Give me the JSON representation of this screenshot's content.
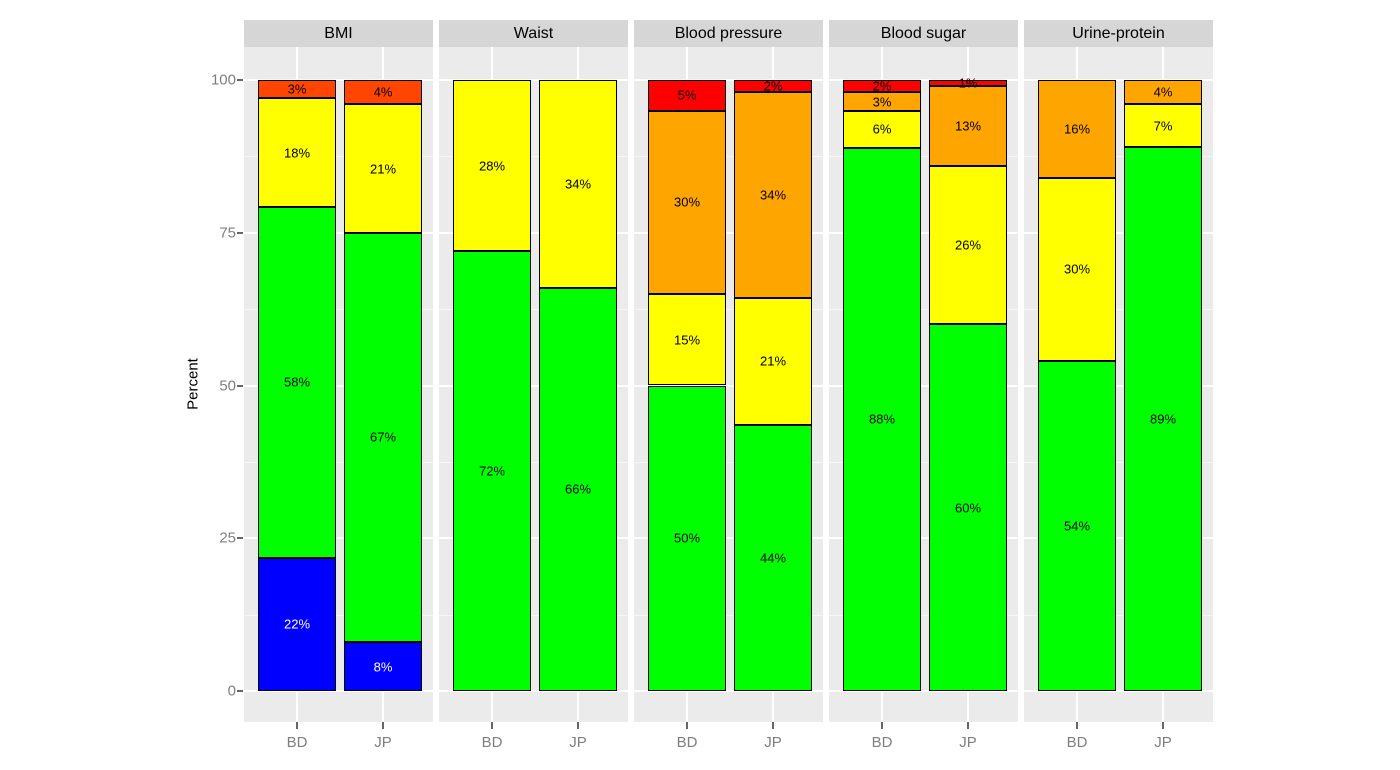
{
  "chart_data": {
    "type": "bar",
    "stacked": true,
    "units": "percent",
    "title": "",
    "xlabel": "",
    "ylabel": "Percent",
    "ylim": [
      0,
      100
    ],
    "y_major_ticks": [
      0,
      25,
      50,
      75,
      100
    ],
    "y_minor_ticks": [
      12.5,
      37.5,
      62.5,
      87.5
    ],
    "categories": [
      "BD",
      "JP"
    ],
    "grid": "on",
    "legend": "none",
    "palette": {
      "blue": "#0000FF",
      "green": "#00FF00",
      "yellow": "#FFFF00",
      "orange": "#FFA500",
      "orangered": "#FF4500",
      "red": "#FF0000"
    },
    "colors": {
      "panel_bg": "#EBEBEB",
      "strip_bg": "#D6D6D6",
      "strip_text": "#000000",
      "grid_major": "#FFFFFF",
      "axis_text": "#7F7F7F",
      "tick_mark": "#666666",
      "segment_border": "#000000",
      "label_text": "#000000"
    },
    "facets": [
      {
        "label": "BMI",
        "bars": [
          {
            "category": "BD",
            "segments": [
              {
                "color": "blue",
                "value": 22,
                "label": "22%",
                "label_color": "#FFFFFF"
              },
              {
                "color": "green",
                "value": 58,
                "label": "58%"
              },
              {
                "color": "yellow",
                "value": 18,
                "label": "18%"
              },
              {
                "color": "orangered",
                "value": 3,
                "label": "3%"
              }
            ]
          },
          {
            "category": "JP",
            "segments": [
              {
                "color": "blue",
                "value": 8,
                "label": "8%",
                "label_color": "#FFFFFF"
              },
              {
                "color": "green",
                "value": 67,
                "label": "67%"
              },
              {
                "color": "yellow",
                "value": 21,
                "label": "21%"
              },
              {
                "color": "orangered",
                "value": 4,
                "label": "4%"
              }
            ]
          }
        ]
      },
      {
        "label": "Waist",
        "bars": [
          {
            "category": "BD",
            "segments": [
              {
                "color": "green",
                "value": 72,
                "label": "72%"
              },
              {
                "color": "yellow",
                "value": 28,
                "label": "28%"
              }
            ]
          },
          {
            "category": "JP",
            "segments": [
              {
                "color": "green",
                "value": 66,
                "label": "66%"
              },
              {
                "color": "yellow",
                "value": 34,
                "label": "34%"
              }
            ]
          }
        ]
      },
      {
        "label": "Blood pressure",
        "bars": [
          {
            "category": "BD",
            "segments": [
              {
                "color": "green",
                "value": 50,
                "label": "50%"
              },
              {
                "color": "yellow",
                "value": 15,
                "label": "15%"
              },
              {
                "color": "orange",
                "value": 30,
                "label": "30%"
              },
              {
                "color": "red",
                "value": 5,
                "label": "5%"
              }
            ]
          },
          {
            "category": "JP",
            "segments": [
              {
                "color": "green",
                "value": 44,
                "label": "44%"
              },
              {
                "color": "yellow",
                "value": 21,
                "label": "21%"
              },
              {
                "color": "orange",
                "value": 34,
                "label": "34%"
              },
              {
                "color": "red",
                "value": 2,
                "label": "2%"
              }
            ]
          }
        ]
      },
      {
        "label": "Blood sugar",
        "bars": [
          {
            "category": "BD",
            "segments": [
              {
                "color": "green",
                "value": 88,
                "label": "88%"
              },
              {
                "color": "yellow",
                "value": 6,
                "label": "6%"
              },
              {
                "color": "orange",
                "value": 3,
                "label": "3%"
              },
              {
                "color": "red",
                "value": 2,
                "label": "2%"
              }
            ]
          },
          {
            "category": "JP",
            "segments": [
              {
                "color": "green",
                "value": 60,
                "label": "60%"
              },
              {
                "color": "yellow",
                "value": 26,
                "label": "26%"
              },
              {
                "color": "orange",
                "value": 13,
                "label": "13%"
              },
              {
                "color": "red",
                "value": 1,
                "label": "1%"
              }
            ]
          }
        ]
      },
      {
        "label": "Urine-protein",
        "bars": [
          {
            "category": "BD",
            "segments": [
              {
                "color": "green",
                "value": 54,
                "label": "54%"
              },
              {
                "color": "yellow",
                "value": 30,
                "label": "30%"
              },
              {
                "color": "orange",
                "value": 16,
                "label": "16%"
              }
            ]
          },
          {
            "category": "JP",
            "segments": [
              {
                "color": "green",
                "value": 89,
                "label": "89%"
              },
              {
                "color": "yellow",
                "value": 7,
                "label": "7%"
              },
              {
                "color": "orange",
                "value": 4,
                "label": "4%"
              }
            ]
          }
        ]
      }
    ]
  }
}
